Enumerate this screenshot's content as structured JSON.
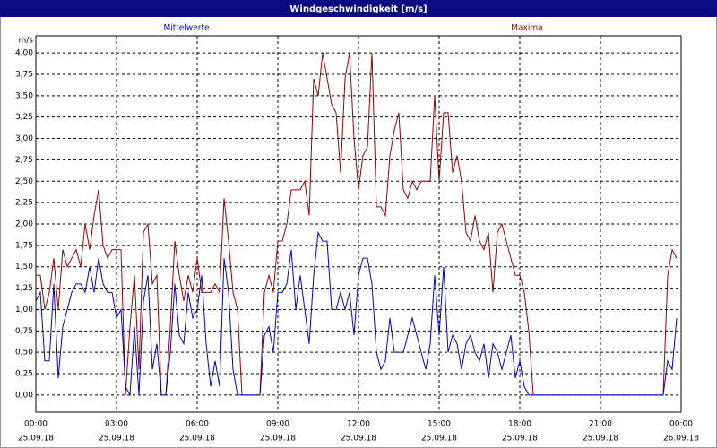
{
  "chart_data": {
    "type": "line",
    "title": "Windgeschwindigkeit [m/s]",
    "y_unit": "m/s",
    "x": [
      0,
      10,
      20,
      30,
      40,
      50,
      60,
      70,
      80,
      90,
      100,
      110,
      120,
      130,
      140,
      150,
      160,
      170,
      180,
      190,
      200,
      210,
      220,
      230,
      240,
      250,
      260,
      270,
      280,
      290,
      300,
      310,
      320,
      330,
      340,
      350,
      360,
      370,
      380,
      390,
      400,
      410,
      420,
      430,
      440,
      450,
      460,
      470,
      480,
      490,
      500,
      510,
      520,
      530,
      540,
      550,
      560,
      570,
      580,
      590,
      600,
      610,
      620,
      630,
      640,
      650,
      660,
      670,
      680,
      690,
      700,
      710,
      720,
      730,
      740,
      750,
      760,
      770,
      780,
      790,
      800,
      810,
      820,
      830,
      840,
      850,
      860,
      870,
      880,
      890,
      900,
      910,
      920,
      930,
      940,
      950,
      960,
      970,
      980,
      990,
      1000,
      1010,
      1020,
      1030,
      1040,
      1050,
      1060,
      1070,
      1080,
      1090,
      1100,
      1110,
      1120,
      1130,
      1140,
      1150,
      1160,
      1170,
      1180,
      1190,
      1200,
      1210,
      1220,
      1230,
      1240,
      1250,
      1260,
      1270,
      1280,
      1290,
      1300,
      1310,
      1320,
      1330,
      1340,
      1350,
      1360,
      1370,
      1380,
      1390,
      1400,
      1410,
      1420,
      1430
    ],
    "series": [
      {
        "name": "Mittelwerte",
        "color": "#0000cc",
        "values": [
          1.1,
          1.2,
          0.4,
          0.4,
          1.3,
          0.2,
          0.8,
          1.0,
          1.2,
          1.3,
          1.3,
          1.2,
          1.5,
          1.2,
          1.6,
          1.3,
          1.2,
          1.2,
          0.9,
          1.0,
          0.1,
          0.0,
          0.8,
          0.0,
          1.1,
          1.4,
          0.3,
          0.6,
          0.0,
          0.0,
          0.5,
          1.3,
          0.7,
          0.6,
          1.2,
          0.9,
          1.0,
          1.4,
          0.6,
          0.1,
          0.4,
          0.1,
          1.6,
          1.2,
          0.3,
          0.0,
          0,
          0,
          0,
          0,
          0,
          0.7,
          0.8,
          0.5,
          1.2,
          1.2,
          1.3,
          1.7,
          1.0,
          1.4,
          1.0,
          0.6,
          1.4,
          1.9,
          1.8,
          1.8,
          1.0,
          1.0,
          1.2,
          1.0,
          1.2,
          0.7,
          1.4,
          1.6,
          1.6,
          1.3,
          0.5,
          0.3,
          0.4,
          0.9,
          0.5,
          0.5,
          0.5,
          0.7,
          0.9,
          0.7,
          0.5,
          0.3,
          0.6,
          1.4,
          0.7,
          1.5,
          0.5,
          0.7,
          0.6,
          0.3,
          0.6,
          0.7,
          0.5,
          0.4,
          0.6,
          0.2,
          0.6,
          0.5,
          0.3,
          0.5,
          0.7,
          0.2,
          0.4,
          0.1,
          0,
          0,
          0,
          0,
          0,
          0,
          0,
          0,
          0,
          0,
          0,
          0,
          0,
          0,
          0,
          0,
          0,
          0,
          0,
          0,
          0,
          0,
          0,
          0,
          0,
          0,
          0,
          0,
          0,
          0,
          0,
          0.4,
          0.3,
          0.9
        ]
      },
      {
        "name": "Maxima",
        "color": "#990000",
        "values": [
          1.4,
          1.4,
          1.0,
          1.2,
          1.6,
          1.0,
          1.7,
          1.5,
          1.6,
          1.7,
          1.5,
          2.0,
          1.7,
          2.1,
          2.4,
          1.75,
          1.6,
          1.7,
          1.7,
          1.7,
          0.0,
          0.8,
          1.4,
          0.3,
          1.9,
          2.0,
          1.3,
          1.4,
          0.0,
          0.0,
          0.8,
          1.8,
          1.4,
          1.1,
          1.4,
          1.2,
          1.6,
          1.2,
          1.2,
          1.2,
          1.3,
          1.2,
          2.3,
          1.8,
          1.2,
          1.0,
          0,
          0,
          0,
          0,
          0,
          1.2,
          1.4,
          1.2,
          1.8,
          1.8,
          2.0,
          2.4,
          2.4,
          2.4,
          2.5,
          2.1,
          3.7,
          3.5,
          4.0,
          3.7,
          3.4,
          3.3,
          2.6,
          3.7,
          4.0,
          3.0,
          2.4,
          2.8,
          2.9,
          4.0,
          2.2,
          2.2,
          2.1,
          2.8,
          3.1,
          3.3,
          2.4,
          2.3,
          2.5,
          2.4,
          2.5,
          2.5,
          2.5,
          3.5,
          2.5,
          3.3,
          3.3,
          2.6,
          2.8,
          2.5,
          1.9,
          1.8,
          2.1,
          1.8,
          1.7,
          1.9,
          1.2,
          1.9,
          2.0,
          1.8,
          1.6,
          1.4,
          1.4,
          1.2,
          0.75,
          0,
          0,
          0,
          0,
          0,
          0,
          0,
          0,
          0,
          0,
          0,
          0,
          0,
          0,
          0,
          0,
          0,
          0,
          0,
          0,
          0,
          0,
          0,
          0,
          0,
          0,
          0,
          0,
          0,
          0,
          1.4,
          1.7,
          1.6
        ]
      }
    ],
    "xlim": [
      0,
      1440
    ],
    "xticks": [
      {
        "value": 0,
        "label": "00:00"
      },
      {
        "value": 180,
        "label": "03:00"
      },
      {
        "value": 360,
        "label": "06:00"
      },
      {
        "value": 540,
        "label": "09:00"
      },
      {
        "value": 720,
        "label": "12:00"
      },
      {
        "value": 900,
        "label": "15:00"
      },
      {
        "value": 1080,
        "label": "18:00"
      },
      {
        "value": 1260,
        "label": "21:00"
      },
      {
        "value": 1440,
        "label": "00:00"
      }
    ],
    "xtick_dates": [
      "25.09.18",
      "25.09.18",
      "25.09.18",
      "25.09.18",
      "25.09.18",
      "25.09.18",
      "25.09.18",
      "25.09.18",
      "26.09.18"
    ],
    "ylim": [
      -0.2,
      4.2
    ],
    "yticks": [
      {
        "value": 0,
        "label": "0,00"
      },
      {
        "value": 0.25,
        "label": "0,25"
      },
      {
        "value": 0.5,
        "label": "0,50"
      },
      {
        "value": 0.75,
        "label": "0,75"
      },
      {
        "value": 1,
        "label": "1,00"
      },
      {
        "value": 1.25,
        "label": "1,25"
      },
      {
        "value": 1.5,
        "label": "1,50"
      },
      {
        "value": 1.75,
        "label": "1,75"
      },
      {
        "value": 2,
        "label": "2,00"
      },
      {
        "value": 2.25,
        "label": "2,25"
      },
      {
        "value": 2.5,
        "label": "2,50"
      },
      {
        "value": 2.75,
        "label": "2,75"
      },
      {
        "value": 3,
        "label": "3,00"
      },
      {
        "value": 3.25,
        "label": "3,25"
      },
      {
        "value": 3.5,
        "label": "3,50"
      },
      {
        "value": 3.75,
        "label": "3,75"
      },
      {
        "value": 4,
        "label": "4,00"
      }
    ],
    "grid": true
  }
}
